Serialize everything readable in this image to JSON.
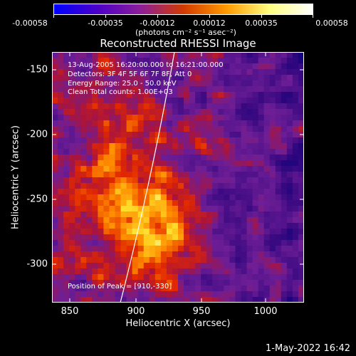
{
  "colorbar": {
    "tick_labels": [
      "-0.00058",
      "-0.00035",
      "-0.00012",
      "0.00012",
      "0.00035",
      "0.00058"
    ],
    "units": "(photons cm⁻² s⁻¹ asec⁻²)",
    "colors": [
      "#0000ff",
      "#4b00c8",
      "#8c1e9a",
      "#d23a00",
      "#ff9a00",
      "#ffff80",
      "#ffffff"
    ]
  },
  "plot": {
    "title": "Reconstructed RHESSI Image",
    "xlabel": "Heliocentric X (arcsec)",
    "ylabel": "Heliocentric Y (arcsec)",
    "x_ticks": [
      "850",
      "900",
      "950",
      "1000"
    ],
    "y_ticks": [
      "-150",
      "-200",
      "-250",
      "-300"
    ],
    "info_lines": [
      "13-Aug-2005 16:20:00.000 to 16:21:00.000",
      "Detectors: 3F 4F 5F 6F 7F 8F, Att 0",
      "Energy Range: 25.0 - 50.0 keV",
      "Clean    Total counts: 1.00E+03"
    ],
    "peak_text": "Position of Peak = [910,-330]"
  },
  "chart_data": {
    "type": "heatmap",
    "title": "Reconstructed RHESSI Image",
    "xlabel": "Heliocentric X (arcsec)",
    "ylabel": "Heliocentric Y (arcsec)",
    "xlim": [
      838,
      1028
    ],
    "ylim": [
      -328,
      -138
    ],
    "color_range": [
      -0.00058,
      0.00058
    ],
    "peak": [
      910,
      -330
    ]
  },
  "footer": {
    "date": "1-May-2022 16:42"
  }
}
